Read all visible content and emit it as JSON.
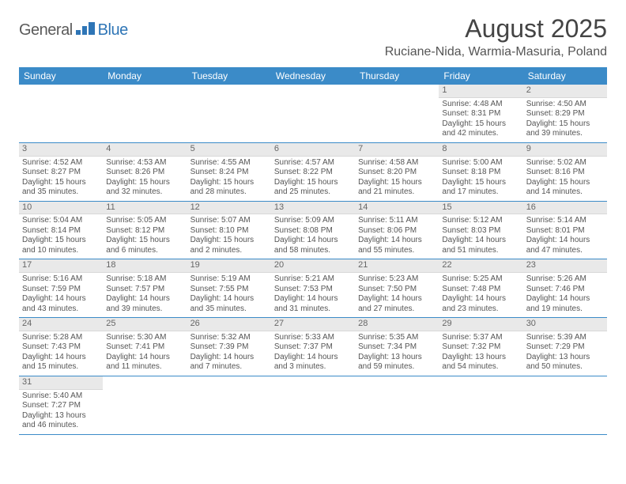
{
  "brand": {
    "part1": "General",
    "part2": "Blue",
    "logo_color": "#2e75b6"
  },
  "title": "August 2025",
  "location": "Ruciane-Nida, Warmia-Masuria, Poland",
  "header_bg": "#3b8bc8",
  "daynum_bg": "#e9e9e9",
  "days": [
    "Sunday",
    "Monday",
    "Tuesday",
    "Wednesday",
    "Thursday",
    "Friday",
    "Saturday"
  ],
  "weeks": [
    [
      null,
      null,
      null,
      null,
      null,
      {
        "n": "1",
        "sr": "Sunrise: 4:48 AM",
        "ss": "Sunset: 8:31 PM",
        "dl": "Daylight: 15 hours and 42 minutes."
      },
      {
        "n": "2",
        "sr": "Sunrise: 4:50 AM",
        "ss": "Sunset: 8:29 PM",
        "dl": "Daylight: 15 hours and 39 minutes."
      }
    ],
    [
      {
        "n": "3",
        "sr": "Sunrise: 4:52 AM",
        "ss": "Sunset: 8:27 PM",
        "dl": "Daylight: 15 hours and 35 minutes."
      },
      {
        "n": "4",
        "sr": "Sunrise: 4:53 AM",
        "ss": "Sunset: 8:26 PM",
        "dl": "Daylight: 15 hours and 32 minutes."
      },
      {
        "n": "5",
        "sr": "Sunrise: 4:55 AM",
        "ss": "Sunset: 8:24 PM",
        "dl": "Daylight: 15 hours and 28 minutes."
      },
      {
        "n": "6",
        "sr": "Sunrise: 4:57 AM",
        "ss": "Sunset: 8:22 PM",
        "dl": "Daylight: 15 hours and 25 minutes."
      },
      {
        "n": "7",
        "sr": "Sunrise: 4:58 AM",
        "ss": "Sunset: 8:20 PM",
        "dl": "Daylight: 15 hours and 21 minutes."
      },
      {
        "n": "8",
        "sr": "Sunrise: 5:00 AM",
        "ss": "Sunset: 8:18 PM",
        "dl": "Daylight: 15 hours and 17 minutes."
      },
      {
        "n": "9",
        "sr": "Sunrise: 5:02 AM",
        "ss": "Sunset: 8:16 PM",
        "dl": "Daylight: 15 hours and 14 minutes."
      }
    ],
    [
      {
        "n": "10",
        "sr": "Sunrise: 5:04 AM",
        "ss": "Sunset: 8:14 PM",
        "dl": "Daylight: 15 hours and 10 minutes."
      },
      {
        "n": "11",
        "sr": "Sunrise: 5:05 AM",
        "ss": "Sunset: 8:12 PM",
        "dl": "Daylight: 15 hours and 6 minutes."
      },
      {
        "n": "12",
        "sr": "Sunrise: 5:07 AM",
        "ss": "Sunset: 8:10 PM",
        "dl": "Daylight: 15 hours and 2 minutes."
      },
      {
        "n": "13",
        "sr": "Sunrise: 5:09 AM",
        "ss": "Sunset: 8:08 PM",
        "dl": "Daylight: 14 hours and 58 minutes."
      },
      {
        "n": "14",
        "sr": "Sunrise: 5:11 AM",
        "ss": "Sunset: 8:06 PM",
        "dl": "Daylight: 14 hours and 55 minutes."
      },
      {
        "n": "15",
        "sr": "Sunrise: 5:12 AM",
        "ss": "Sunset: 8:03 PM",
        "dl": "Daylight: 14 hours and 51 minutes."
      },
      {
        "n": "16",
        "sr": "Sunrise: 5:14 AM",
        "ss": "Sunset: 8:01 PM",
        "dl": "Daylight: 14 hours and 47 minutes."
      }
    ],
    [
      {
        "n": "17",
        "sr": "Sunrise: 5:16 AM",
        "ss": "Sunset: 7:59 PM",
        "dl": "Daylight: 14 hours and 43 minutes."
      },
      {
        "n": "18",
        "sr": "Sunrise: 5:18 AM",
        "ss": "Sunset: 7:57 PM",
        "dl": "Daylight: 14 hours and 39 minutes."
      },
      {
        "n": "19",
        "sr": "Sunrise: 5:19 AM",
        "ss": "Sunset: 7:55 PM",
        "dl": "Daylight: 14 hours and 35 minutes."
      },
      {
        "n": "20",
        "sr": "Sunrise: 5:21 AM",
        "ss": "Sunset: 7:53 PM",
        "dl": "Daylight: 14 hours and 31 minutes."
      },
      {
        "n": "21",
        "sr": "Sunrise: 5:23 AM",
        "ss": "Sunset: 7:50 PM",
        "dl": "Daylight: 14 hours and 27 minutes."
      },
      {
        "n": "22",
        "sr": "Sunrise: 5:25 AM",
        "ss": "Sunset: 7:48 PM",
        "dl": "Daylight: 14 hours and 23 minutes."
      },
      {
        "n": "23",
        "sr": "Sunrise: 5:26 AM",
        "ss": "Sunset: 7:46 PM",
        "dl": "Daylight: 14 hours and 19 minutes."
      }
    ],
    [
      {
        "n": "24",
        "sr": "Sunrise: 5:28 AM",
        "ss": "Sunset: 7:43 PM",
        "dl": "Daylight: 14 hours and 15 minutes."
      },
      {
        "n": "25",
        "sr": "Sunrise: 5:30 AM",
        "ss": "Sunset: 7:41 PM",
        "dl": "Daylight: 14 hours and 11 minutes."
      },
      {
        "n": "26",
        "sr": "Sunrise: 5:32 AM",
        "ss": "Sunset: 7:39 PM",
        "dl": "Daylight: 14 hours and 7 minutes."
      },
      {
        "n": "27",
        "sr": "Sunrise: 5:33 AM",
        "ss": "Sunset: 7:37 PM",
        "dl": "Daylight: 14 hours and 3 minutes."
      },
      {
        "n": "28",
        "sr": "Sunrise: 5:35 AM",
        "ss": "Sunset: 7:34 PM",
        "dl": "Daylight: 13 hours and 59 minutes."
      },
      {
        "n": "29",
        "sr": "Sunrise: 5:37 AM",
        "ss": "Sunset: 7:32 PM",
        "dl": "Daylight: 13 hours and 54 minutes."
      },
      {
        "n": "30",
        "sr": "Sunrise: 5:39 AM",
        "ss": "Sunset: 7:29 PM",
        "dl": "Daylight: 13 hours and 50 minutes."
      }
    ],
    [
      {
        "n": "31",
        "sr": "Sunrise: 5:40 AM",
        "ss": "Sunset: 7:27 PM",
        "dl": "Daylight: 13 hours and 46 minutes."
      },
      null,
      null,
      null,
      null,
      null,
      null
    ]
  ]
}
